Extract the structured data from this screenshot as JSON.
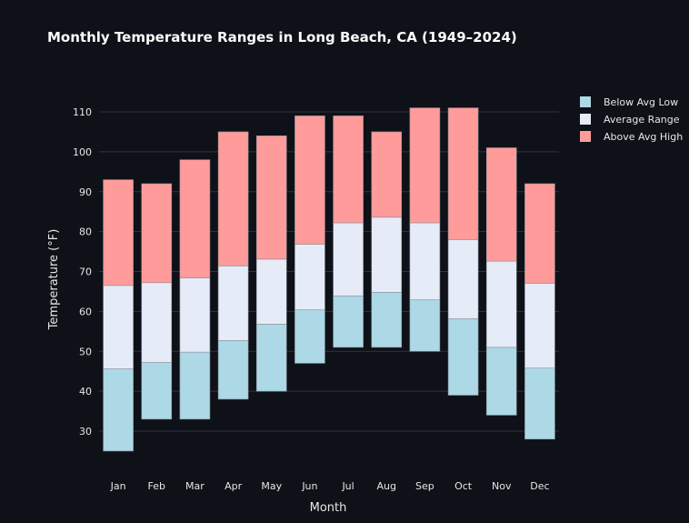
{
  "chart_data": {
    "type": "bar",
    "stacked": true,
    "title": "Monthly Temperature Ranges in Long Beach, CA (1949–2024)",
    "xlabel": "Month",
    "ylabel": "Temperature (°F)",
    "ylim": [
      20,
      115
    ],
    "yticks": [
      30,
      40,
      50,
      60,
      70,
      80,
      90,
      100,
      110
    ],
    "grid": true,
    "legend_position": "top-right",
    "categories": [
      "Jan",
      "Feb",
      "Mar",
      "Apr",
      "May",
      "Jun",
      "Jul",
      "Aug",
      "Sep",
      "Oct",
      "Nov",
      "Dec"
    ],
    "record_low": [
      25,
      33,
      33,
      38,
      40,
      47,
      51,
      51,
      50,
      39,
      34,
      28
    ],
    "avg_low": [
      45.6,
      47.2,
      49.8,
      52.7,
      56.8,
      60.4,
      63.9,
      64.8,
      62.9,
      58.2,
      51.0,
      45.8
    ],
    "avg_high": [
      66.5,
      67.2,
      68.4,
      71.4,
      73.1,
      76.8,
      82.2,
      83.6,
      82.2,
      78.0,
      72.6,
      67.0
    ],
    "record_high": [
      93,
      92,
      98,
      105,
      104,
      109,
      109,
      105,
      111,
      111,
      101,
      92
    ],
    "series": [
      {
        "name": "Below Avg Low",
        "color": "#add8e6"
      },
      {
        "name": "Average Range",
        "color": "#e6ecf7"
      },
      {
        "name": "Above Avg High",
        "color": "#ff9b9b"
      }
    ]
  }
}
